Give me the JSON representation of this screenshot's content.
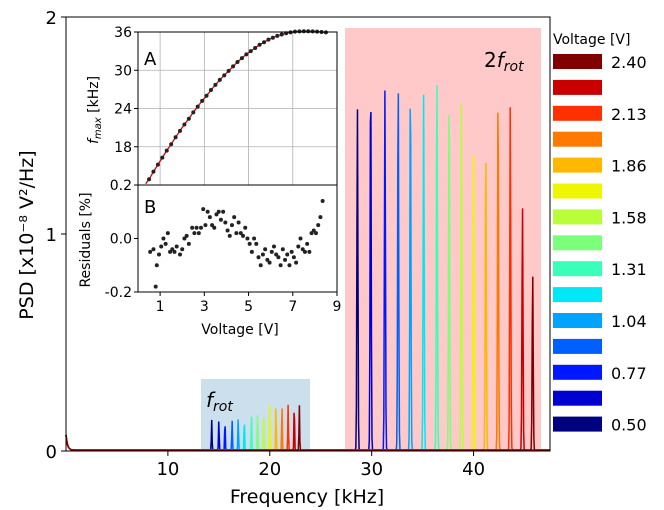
{
  "chart_data": [
    {
      "type": "line",
      "ylabel": "PSD [x10⁻⁸ V²/Hz]",
      "xlabel": "Frequency [kHz]",
      "xlim": [
        0,
        47.5
      ],
      "ylim": [
        0,
        2
      ],
      "xticks": [
        10,
        20,
        30,
        40
      ],
      "yticks": [
        0,
        1,
        2
      ],
      "grid": false,
      "annotations": {
        "f_rot": "f",
        "f_rot_sub": "rot",
        "two_f_rot_prefix": "2",
        "two_f_rot": "f",
        "two_f_rot_sub": "rot"
      },
      "legend": {
        "title": "Voltage [V]",
        "placement": "right",
        "entries": [
          {
            "label": "2.40",
            "color": "#800000"
          },
          {
            "label": "",
            "color": "#c80000"
          },
          {
            "label": "2.13",
            "color": "#ff3000"
          },
          {
            "label": "",
            "color": "#ff7800"
          },
          {
            "label": "1.86",
            "color": "#ffb800"
          },
          {
            "label": "",
            "color": "#ecf700"
          },
          {
            "label": "1.58",
            "color": "#b8ff3a"
          },
          {
            "label": "",
            "color": "#7cff7a"
          },
          {
            "label": "1.31",
            "color": "#3affb8"
          },
          {
            "label": "",
            "color": "#00e8f5"
          },
          {
            "label": "1.04",
            "color": "#00a4ff"
          },
          {
            "label": "",
            "color": "#0060ff"
          },
          {
            "label": "0.77",
            "color": "#0018ff"
          },
          {
            "label": "",
            "color": "#0000d0"
          },
          {
            "label": "0.50",
            "color": "#000080"
          }
        ]
      },
      "series": [
        {
          "voltage": 0.5,
          "color": "#000080",
          "f1": 14.3,
          "a1": 0.14,
          "f2": 28.6,
          "a2": 1.58
        },
        {
          "voltage": 0.77,
          "color": "#0000d0",
          "f1": 15.0,
          "a1": 0.14,
          "f2": 29.9,
          "a2": 1.77
        },
        {
          "voltage": 0.77,
          "color": "#0018ff",
          "f1": 15.6,
          "a1": 0.14,
          "f2": 31.3,
          "a2": 1.66
        },
        {
          "voltage": 1.04,
          "color": "#0060ff",
          "f1": 16.3,
          "a1": 0.14,
          "f2": 32.6,
          "a2": 1.74
        },
        {
          "voltage": 1.04,
          "color": "#00a4ff",
          "f1": 16.9,
          "a1": 0.15,
          "f2": 33.8,
          "a2": 1.74
        },
        {
          "voltage": 1.31,
          "color": "#00e8f5",
          "f1": 17.5,
          "a1": 0.15,
          "f2": 35.1,
          "a2": 1.64
        },
        {
          "voltage": 1.31,
          "color": "#3affb8",
          "f1": 18.2,
          "a1": 0.16,
          "f2": 36.4,
          "a2": 1.78
        },
        {
          "voltage": 1.58,
          "color": "#7cff7a",
          "f1": 18.8,
          "a1": 0.17,
          "f2": 37.6,
          "a2": 1.71
        },
        {
          "voltage": 1.58,
          "color": "#b8ff3a",
          "f1": 19.4,
          "a1": 0.19,
          "f2": 38.8,
          "a2": 1.62
        },
        {
          "voltage": 1.86,
          "color": "#ecf700",
          "f1": 20.0,
          "a1": 0.21,
          "f2": 40.0,
          "a2": 1.37
        },
        {
          "voltage": 1.86,
          "color": "#ffb800",
          "f1": 20.6,
          "a1": 0.22,
          "f2": 41.2,
          "a2": 1.43
        },
        {
          "voltage": 2.13,
          "color": "#ff7800",
          "f1": 21.2,
          "a1": 0.22,
          "f2": 42.4,
          "a2": 1.68
        },
        {
          "voltage": 2.13,
          "color": "#ff3000",
          "f1": 21.8,
          "a1": 0.21,
          "f2": 43.6,
          "a2": 1.59
        },
        {
          "voltage": 2.4,
          "color": "#c80000",
          "f1": 22.4,
          "a1": 0.22,
          "f2": 44.8,
          "a2": 1.13
        },
        {
          "voltage": 2.4,
          "color": "#800000",
          "f1": 22.9,
          "a1": 0.21,
          "f2": 45.8,
          "a2": 0.82
        }
      ]
    },
    {
      "type": "scatter",
      "panel": "A",
      "ylabel": "f",
      "ylabel_sub": "max",
      "ylabel_unit": " [kHz]",
      "xlim": [
        0,
        9
      ],
      "ylim": [
        12,
        36
      ],
      "yticks": [
        18,
        24,
        30,
        36
      ],
      "grid": true,
      "x": [
        0.5,
        0.7,
        0.9,
        1.1,
        1.3,
        1.5,
        1.7,
        1.9,
        2.1,
        2.3,
        2.5,
        2.7,
        2.9,
        3.1,
        3.3,
        3.5,
        3.7,
        3.9,
        4.1,
        4.3,
        4.5,
        4.7,
        4.9,
        5.1,
        5.3,
        5.5,
        5.7,
        5.9,
        6.1,
        6.3,
        6.5,
        6.7,
        6.9,
        7.1,
        7.3,
        7.5,
        7.7,
        7.9,
        8.1,
        8.3,
        8.5
      ],
      "y": [
        12.9,
        14.1,
        15.2,
        16.3,
        17.4,
        18.4,
        19.5,
        20.5,
        21.5,
        22.4,
        23.4,
        24.3,
        25.2,
        26.0,
        26.9,
        27.7,
        28.5,
        29.2,
        29.9,
        30.6,
        31.3,
        31.9,
        32.5,
        33.0,
        33.5,
        34.0,
        34.4,
        34.8,
        35.1,
        35.4,
        35.6,
        35.8,
        35.95,
        36.05,
        36.1,
        36.12,
        36.12,
        36.1,
        36.05,
        36.0,
        35.95
      ]
    },
    {
      "type": "scatter",
      "panel": "B",
      "ylabel": "Residuals [%]",
      "xlabel": "Voltage [V]",
      "xlim": [
        0,
        9
      ],
      "ylim": [
        -0.2,
        0.2
      ],
      "xticks": [
        1,
        3,
        5,
        7,
        9
      ],
      "yticks": [
        -0.2,
        0.0,
        0.2
      ],
      "grid": false,
      "x": [
        0.55,
        0.7,
        0.8,
        0.85,
        0.95,
        1.05,
        1.15,
        1.25,
        1.35,
        1.45,
        1.55,
        1.65,
        1.75,
        1.9,
        2.0,
        2.1,
        2.2,
        2.3,
        2.45,
        2.55,
        2.65,
        2.75,
        2.85,
        2.95,
        3.05,
        3.15,
        3.25,
        3.35,
        3.45,
        3.55,
        3.65,
        3.75,
        3.85,
        3.95,
        4.05,
        4.15,
        4.25,
        4.35,
        4.45,
        4.55,
        4.65,
        4.75,
        4.85,
        4.95,
        5.05,
        5.15,
        5.25,
        5.35,
        5.45,
        5.55,
        5.65,
        5.75,
        5.85,
        5.95,
        6.05,
        6.15,
        6.25,
        6.35,
        6.45,
        6.55,
        6.65,
        6.75,
        6.85,
        6.95,
        7.05,
        7.15,
        7.25,
        7.35,
        7.45,
        7.55,
        7.65,
        7.75,
        7.85,
        7.95,
        8.05,
        8.15,
        8.25,
        8.35
      ],
      "y": [
        -0.05,
        -0.04,
        -0.18,
        -0.1,
        -0.06,
        -0.03,
        0.0,
        -0.02,
        0.02,
        -0.05,
        -0.04,
        -0.05,
        -0.03,
        -0.06,
        -0.04,
        0.0,
        0.01,
        -0.02,
        0.04,
        0.02,
        0.04,
        0.02,
        0.04,
        0.11,
        0.05,
        0.1,
        0.08,
        0.05,
        0.04,
        0.09,
        0.1,
        0.07,
        0.1,
        0.06,
        0.03,
        0.01,
        0.05,
        0.08,
        0.02,
        0.06,
        0.02,
        0.01,
        0.04,
        0.0,
        -0.02,
        -0.05,
        0.0,
        -0.02,
        -0.07,
        -0.1,
        -0.06,
        -0.04,
        -0.08,
        -0.09,
        -0.05,
        -0.03,
        -0.06,
        -0.07,
        -0.1,
        -0.04,
        -0.08,
        -0.06,
        -0.1,
        -0.05,
        -0.07,
        -0.09,
        -0.03,
        0.0,
        -0.04,
        -0.05,
        -0.02,
        -0.05,
        0.02,
        0.03,
        0.02,
        0.05,
        0.08,
        0.14
      ]
    }
  ]
}
